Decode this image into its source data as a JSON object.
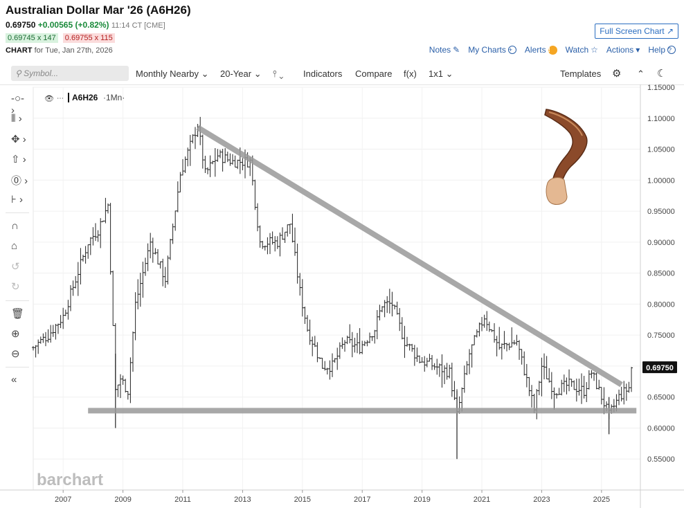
{
  "header": {
    "title": "Australian Dollar Mar '26 (A6H26)",
    "last": "0.69750",
    "change": "+0.00565 (+0.82%)",
    "time": "11:14 CT [CME]",
    "bid": "0.69745 x 147",
    "ask": "0.69755 x 115",
    "chart_label": "CHART",
    "chart_date": "for Tue, Jan 27th, 2026",
    "fullscreen_label": "Full Screen Chart",
    "links": {
      "notes": "Notes",
      "mycharts": "My Charts",
      "alerts": "Alerts",
      "watch": "Watch",
      "actions": "Actions",
      "help": "Help"
    }
  },
  "toolbar": {
    "search_placeholder": "Symbol...",
    "monthly": "Monthly Nearby",
    "range": "20-Year",
    "indicators": "Indicators",
    "compare": "Compare",
    "fx": "f(x)",
    "layout": "1x1",
    "templates": "Templates"
  },
  "legend": {
    "symbol": "A6H26",
    "interval": "·1Mn·"
  },
  "watermark": "barchart",
  "colors": {
    "up": "#1a8a3a",
    "down": "#b32020",
    "trendline": "#999999",
    "accent": "#2a6dc0"
  },
  "icons": [
    "search-icon",
    "gear-icon",
    "collapse-icon",
    "theme-icon",
    "crosshair-icon",
    "bars-icon",
    "draw-icon",
    "arrow-icon",
    "circle-icon",
    "fib-icon",
    "magnet-icon",
    "lock-icon",
    "undo-icon",
    "redo-icon",
    "trash-icon",
    "zoom-in-icon",
    "zoom-out-icon",
    "collapse-sidebar-icon",
    "eye-icon"
  ],
  "chart_data": {
    "type": "ohlc",
    "ylim": [
      0.5,
      1.15
    ],
    "y_ticks": [
      "1.15000",
      "1.10000",
      "1.05000",
      "1.00000",
      "0.95000",
      "0.90000",
      "0.85000",
      "0.80000",
      "0.75000",
      "0.70000",
      "0.65000",
      "0.60000",
      "0.55000"
    ],
    "x_ticks": [
      "2007",
      "2009",
      "2011",
      "2013",
      "2015",
      "2017",
      "2019",
      "2021",
      "2023",
      "2025"
    ],
    "last_price_label": "0.69750",
    "series": [
      {
        "name": "A6H26",
        "points": [
          [
            "2006-01",
            0.73
          ],
          [
            "2006-07",
            0.75
          ],
          [
            "2007-01",
            0.78
          ],
          [
            "2007-06",
            0.84
          ],
          [
            "2007-11",
            0.9
          ],
          [
            "2008-03",
            0.92
          ],
          [
            "2008-07",
            0.96
          ],
          [
            "2008-10",
            0.66
          ],
          [
            "2008-12",
            0.68
          ],
          [
            "2009-03",
            0.66
          ],
          [
            "2009-06",
            0.8
          ],
          [
            "2009-12",
            0.9
          ],
          [
            "2010-06",
            0.84
          ],
          [
            "2010-12",
            1.01
          ],
          [
            "2011-07",
            1.09
          ],
          [
            "2011-10",
            1.01
          ],
          [
            "2012-03",
            1.04
          ],
          [
            "2012-09",
            1.03
          ],
          [
            "2013-04",
            1.03
          ],
          [
            "2013-08",
            0.9
          ],
          [
            "2014-03",
            0.9
          ],
          [
            "2014-08",
            0.93
          ],
          [
            "2014-12",
            0.82
          ],
          [
            "2015-03",
            0.76
          ],
          [
            "2015-09",
            0.7
          ],
          [
            "2016-01",
            0.7
          ],
          [
            "2016-06",
            0.74
          ],
          [
            "2016-12",
            0.73
          ],
          [
            "2017-06",
            0.76
          ],
          [
            "2017-09",
            0.8
          ],
          [
            "2018-01",
            0.8
          ],
          [
            "2018-06",
            0.74
          ],
          [
            "2018-12",
            0.71
          ],
          [
            "2019-06",
            0.7
          ],
          [
            "2019-12",
            0.69
          ],
          [
            "2020-03",
            0.62
          ],
          [
            "2020-08",
            0.72
          ],
          [
            "2021-02",
            0.78
          ],
          [
            "2021-08",
            0.73
          ],
          [
            "2022-03",
            0.74
          ],
          [
            "2022-10",
            0.63
          ],
          [
            "2023-01",
            0.7
          ],
          [
            "2023-06",
            0.66
          ],
          [
            "2023-12",
            0.67
          ],
          [
            "2024-06",
            0.66
          ],
          [
            "2024-09",
            0.69
          ],
          [
            "2025-04",
            0.62
          ],
          [
            "2025-08",
            0.65
          ],
          [
            "2025-12",
            0.665
          ],
          [
            "2026-01",
            0.6975
          ]
        ],
        "spikes": [
          [
            "2008-10",
            0.6,
            0.72
          ],
          [
            "2020-03",
            0.55,
            0.66
          ],
          [
            "2025-04",
            0.59,
            0.65
          ]
        ]
      }
    ],
    "annotations": [
      {
        "type": "trendline",
        "from": [
          "2011-07",
          1.085
        ],
        "to": [
          "2025-09",
          0.67
        ]
      },
      {
        "type": "horizontal",
        "from": [
          "2007-11",
          0.628
        ],
        "to": [
          "2026-03",
          0.628
        ]
      }
    ]
  }
}
